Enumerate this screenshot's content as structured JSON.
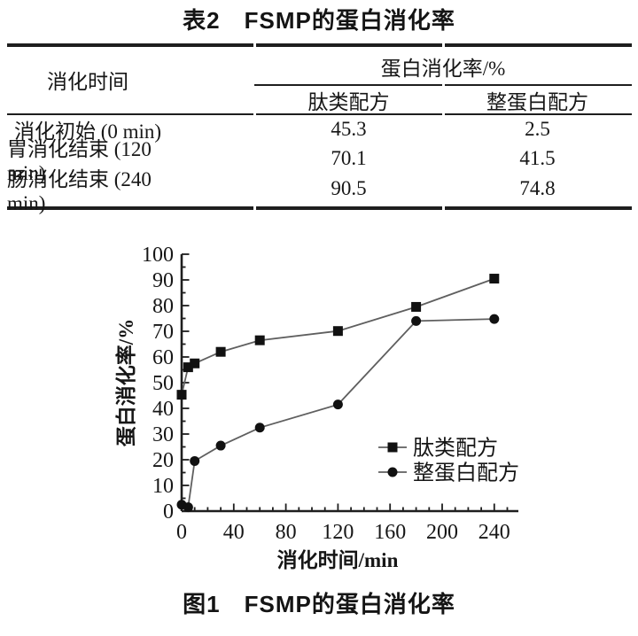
{
  "page": {
    "background": "#ffffff",
    "text_color": "#161616"
  },
  "table": {
    "title": "表2　FSMP的蛋白消化率",
    "row_header": "消化时间",
    "group_header": "蛋白消化率/%",
    "sub_headers": [
      "肽类配方",
      "整蛋白配方"
    ],
    "rows": [
      {
        "label": "消化初始 (0 min)",
        "peptide": "45.3",
        "whole": "2.5"
      },
      {
        "label": "胃消化结束 (120 min)",
        "peptide": "70.1",
        "whole": "41.5"
      },
      {
        "label": "肠消化结束 (240 min)",
        "peptide": "90.5",
        "whole": "74.8"
      }
    ],
    "border_color": "#1e1e1e"
  },
  "figure": {
    "caption": "图1　FSMP的蛋白消化率"
  },
  "chart_data": {
    "type": "line",
    "title": "",
    "xlabel": "消化时间/min",
    "ylabel": "蛋白消化率/%",
    "x": [
      0,
      5,
      10,
      30,
      60,
      120,
      180,
      240
    ],
    "series": [
      {
        "name": "肽类配方",
        "marker": "square",
        "values": [
          45.3,
          56.0,
          57.5,
          62.0,
          66.5,
          70.1,
          79.5,
          90.5
        ]
      },
      {
        "name": "整蛋白配方",
        "marker": "circle",
        "values": [
          2.5,
          1.5,
          19.5,
          25.5,
          32.5,
          41.5,
          74.0,
          74.8
        ]
      }
    ],
    "xlim": [
      0,
      250
    ],
    "ylim": [
      0,
      100
    ],
    "x_major_ticks": [
      0,
      40,
      80,
      120,
      160,
      200,
      240
    ],
    "x_minor_step": 10,
    "y_major_step": 10,
    "y_minor_step": 5,
    "grid": false,
    "legend_position": "inside-lower-right",
    "line_color": "#5f5f5f",
    "marker_color": "#111111",
    "axis_color": "#1e1e1e"
  }
}
